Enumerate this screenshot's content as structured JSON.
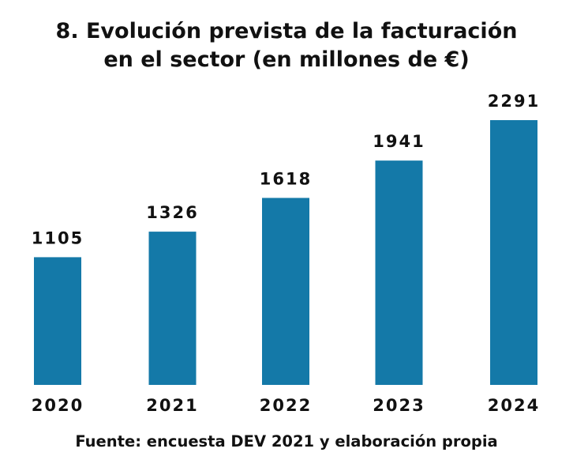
{
  "chart_data": {
    "type": "bar",
    "title_lines": [
      "8. Evolución prevista de la facturación",
      "en el sector (en millones de €)"
    ],
    "categories": [
      "2020",
      "2021",
      "2022",
      "2023",
      "2024"
    ],
    "values": [
      1105,
      1326,
      1618,
      1941,
      2291
    ],
    "xlabel": "",
    "ylabel": "",
    "ylim": [
      0,
      2291
    ],
    "grid": false,
    "bar_color": "#1479a8",
    "source": "Fuente: encuesta DEV 2021 y elaboración propia"
  }
}
